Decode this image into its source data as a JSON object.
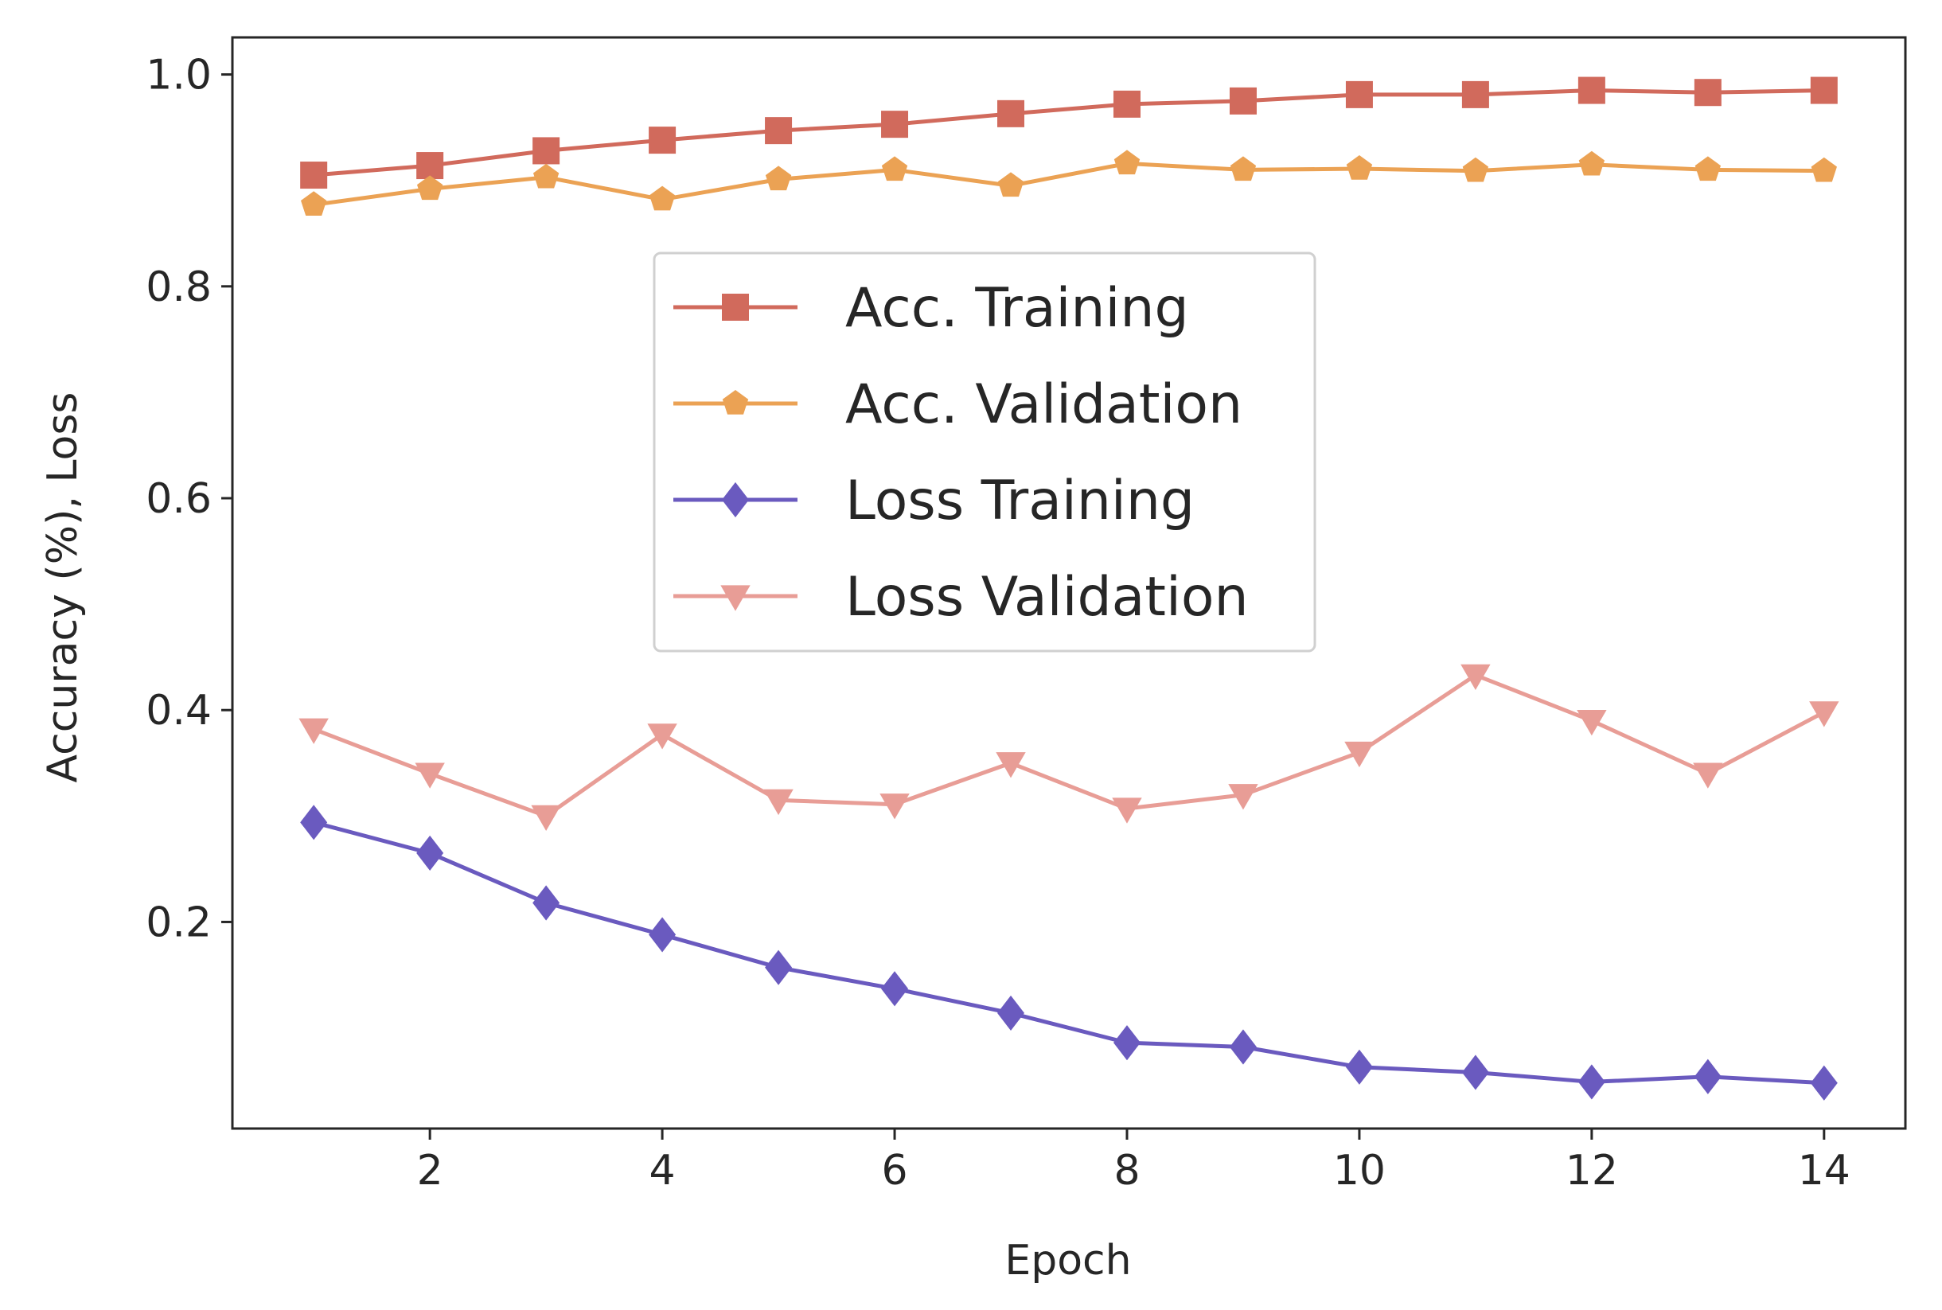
{
  "chart_data": {
    "type": "line",
    "xlabel": "Epoch",
    "ylabel": "Accuracy (%), Loss",
    "x": [
      1,
      2,
      3,
      4,
      5,
      6,
      7,
      8,
      9,
      10,
      11,
      12,
      13,
      14
    ],
    "xlim": [
      0.3,
      14.7
    ],
    "ylim": [
      0.005,
      1.035
    ],
    "xticks": [
      2,
      4,
      6,
      8,
      10,
      12,
      14
    ],
    "yticks": [
      0.2,
      0.4,
      0.6,
      0.8,
      1.0
    ],
    "ytick_labels": [
      "0.2",
      "0.4",
      "0.6",
      "0.8",
      "1.0"
    ],
    "grid": false,
    "legend_position": "center",
    "series": [
      {
        "name": "Acc. Training",
        "color": "#d16a5c",
        "marker": "square",
        "values": [
          0.905,
          0.914,
          0.928,
          0.938,
          0.947,
          0.953,
          0.963,
          0.972,
          0.975,
          0.981,
          0.981,
          0.985,
          0.983,
          0.985
        ]
      },
      {
        "name": "Acc. Validation",
        "color": "#eba254",
        "marker": "pentagon",
        "values": [
          0.877,
          0.892,
          0.903,
          0.882,
          0.901,
          0.91,
          0.895,
          0.916,
          0.91,
          0.911,
          0.909,
          0.915,
          0.91,
          0.909
        ]
      },
      {
        "name": "Loss Training",
        "color": "#6a5abf",
        "marker": "diamond",
        "values": [
          0.294,
          0.265,
          0.218,
          0.188,
          0.157,
          0.137,
          0.114,
          0.086,
          0.082,
          0.063,
          0.058,
          0.049,
          0.054,
          0.048
        ]
      },
      {
        "name": "Loss Validation",
        "color": "#e89d96",
        "marker": "triangle-down",
        "values": [
          0.382,
          0.34,
          0.3,
          0.377,
          0.315,
          0.311,
          0.35,
          0.307,
          0.32,
          0.36,
          0.433,
          0.39,
          0.34,
          0.398
        ]
      }
    ]
  }
}
